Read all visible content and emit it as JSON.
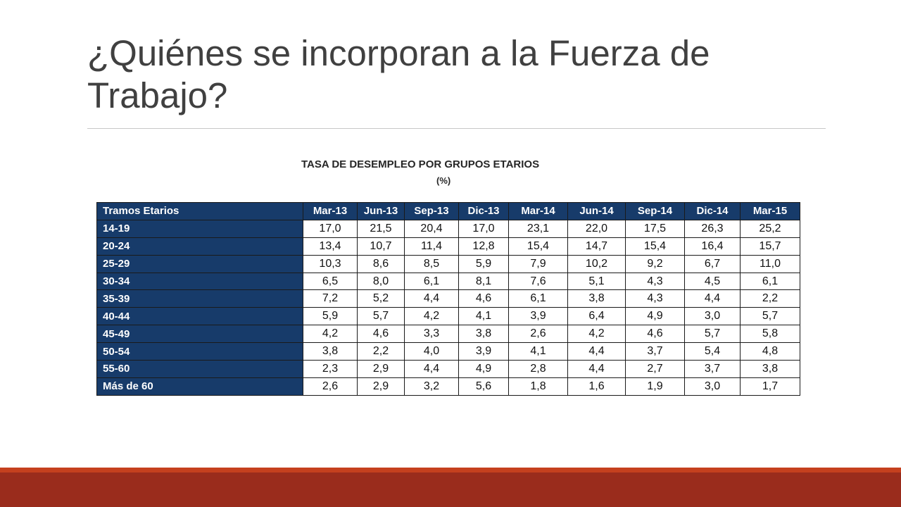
{
  "slide": {
    "title": "¿Quiénes se incorporan a la Fuerza de Trabajo?"
  },
  "table": {
    "heading": "TASA DE DESEMPLEO POR GRUPOS ETARIOS",
    "subheading": "(%)",
    "columns": [
      "Tramos Etarios",
      "Mar-13",
      "Jun-13",
      "Sep-13",
      "Dic-13",
      "Mar-14",
      "Jun-14",
      "Sep-14",
      "Dic-14",
      "Mar-15"
    ],
    "rows": [
      {
        "label": "14-19",
        "values": [
          "17,0",
          "21,5",
          "20,4",
          "17,0",
          "23,1",
          "22,0",
          "17,5",
          "26,3",
          "25,2"
        ]
      },
      {
        "label": "20-24",
        "values": [
          "13,4",
          "10,7",
          "11,4",
          "12,8",
          "15,4",
          "14,7",
          "15,4",
          "16,4",
          "15,7"
        ]
      },
      {
        "label": "25-29",
        "values": [
          "10,3",
          "8,6",
          "8,5",
          "5,9",
          "7,9",
          "10,2",
          "9,2",
          "6,7",
          "11,0"
        ]
      },
      {
        "label": "30-34",
        "values": [
          "6,5",
          "8,0",
          "6,1",
          "8,1",
          "7,6",
          "5,1",
          "4,3",
          "4,5",
          "6,1"
        ]
      },
      {
        "label": "35-39",
        "values": [
          "7,2",
          "5,2",
          "4,4",
          "4,6",
          "6,1",
          "3,8",
          "4,3",
          "4,4",
          "2,2"
        ]
      },
      {
        "label": "40-44",
        "values": [
          "5,9",
          "5,7",
          "4,2",
          "4,1",
          "3,9",
          "6,4",
          "4,9",
          "3,0",
          "5,7"
        ]
      },
      {
        "label": "45-49",
        "values": [
          "4,2",
          "4,6",
          "3,3",
          "3,8",
          "2,6",
          "4,2",
          "4,6",
          "5,7",
          "5,8"
        ]
      },
      {
        "label": "50-54",
        "values": [
          "3,8",
          "2,2",
          "4,0",
          "3,9",
          "4,1",
          "4,4",
          "3,7",
          "5,4",
          "4,8"
        ]
      },
      {
        "label": "55-60",
        "values": [
          "2,3",
          "2,9",
          "4,4",
          "4,9",
          "2,8",
          "4,4",
          "2,7",
          "3,7",
          "3,8"
        ]
      },
      {
        "label": "Más  de 60",
        "values": [
          "2,6",
          "2,9",
          "3,2",
          "5,6",
          "1,8",
          "1,6",
          "1,9",
          "3,0",
          "1,7"
        ]
      }
    ]
  },
  "colors": {
    "title_text": "#404040",
    "table_header_bg": "#173b6a",
    "footer_bar": "#9a2c1c",
    "footer_bar_accent": "#c5401e"
  }
}
